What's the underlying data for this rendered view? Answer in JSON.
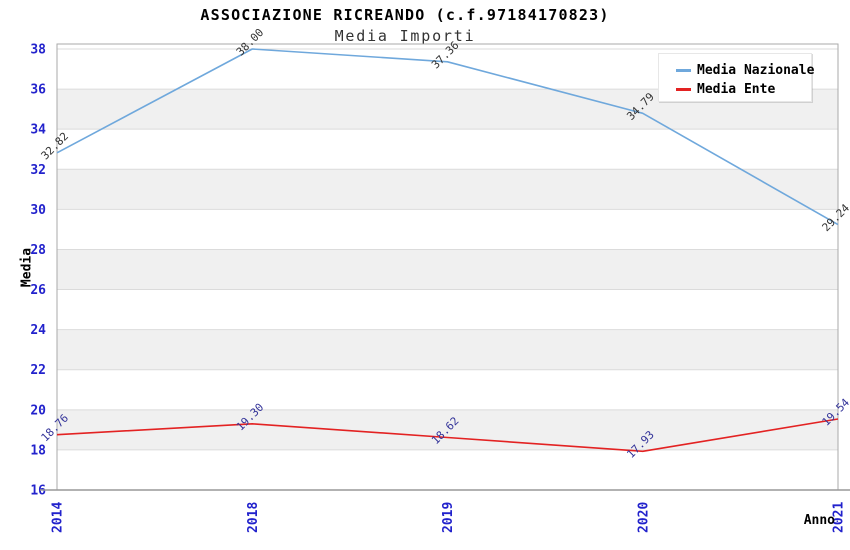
{
  "header": {
    "title": "ASSOCIAZIONE RICREANDO (c.f.97184170823)",
    "subtitle": "Media Importi"
  },
  "legend": {
    "items": [
      {
        "label": "Media Nazionale",
        "color": "#6FA8DC"
      },
      {
        "label": "Media Ente",
        "color": "#E32222"
      }
    ]
  },
  "axes": {
    "y_title": "Media",
    "x_title": "Anno"
  },
  "chart_data": {
    "type": "line",
    "title": "ASSOCIAZIONE RICREANDO (c.f.97184170823)",
    "subtitle": "Media Importi",
    "xlabel": "Anno",
    "ylabel": "Media",
    "categories": [
      "2014",
      "2018",
      "2019",
      "2020",
      "2021"
    ],
    "series": [
      {
        "name": "Media Nazionale",
        "color": "#6FA8DC",
        "label_color": "#333333",
        "values": [
          32.82,
          38.0,
          37.36,
          34.79,
          29.24
        ]
      },
      {
        "name": "Media Ente",
        "color": "#E32222",
        "label_color": "#333399",
        "values": [
          18.76,
          19.3,
          18.62,
          17.93,
          19.54
        ]
      }
    ],
    "ylim": [
      16,
      38
    ],
    "ytick_step": 2,
    "grid": true,
    "legend_position": "top-right",
    "tick_label_color": "#2222CC",
    "band_colors": [
      "#FFFFFF",
      "#F0F0F0"
    ],
    "gridline_color": "#DBDBDB",
    "frame_color": "#AAAAAA"
  }
}
